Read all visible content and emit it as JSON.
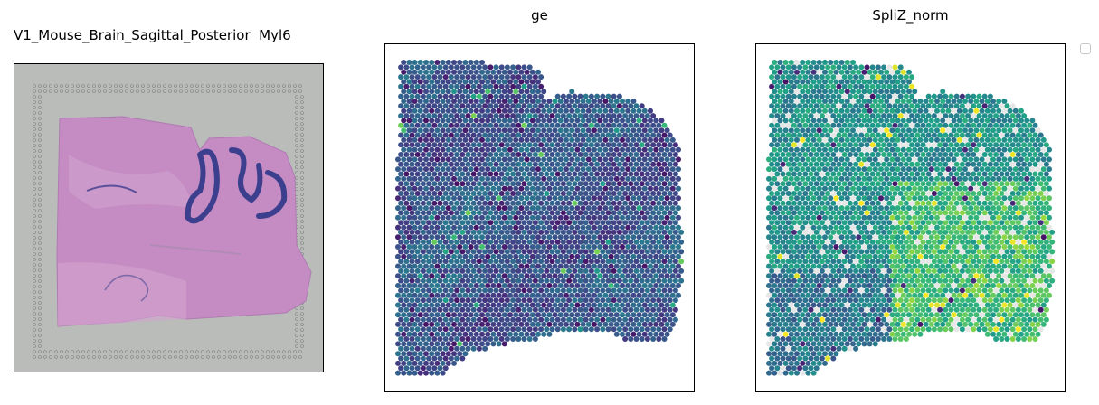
{
  "chart_data": [
    {
      "type": "image",
      "title": "V1_Mouse_Brain_Sagittal_Posterior  Myl6",
      "content": "H&E stained tissue section"
    },
    {
      "type": "scatter",
      "title": "ge",
      "colormap": "viridis",
      "grid": false,
      "colors": {
        "low": "#440154",
        "mid": "#31688e",
        "high": "#fde725"
      }
    },
    {
      "type": "scatter",
      "title": "SpliZ_norm",
      "colormap": "viridis",
      "grid": false,
      "missing_color": "#e6e6e6",
      "legend_placement": "outside top-right",
      "colors": {
        "low": "#440154",
        "mid": "#21918c",
        "high": "#fde725"
      }
    }
  ]
}
